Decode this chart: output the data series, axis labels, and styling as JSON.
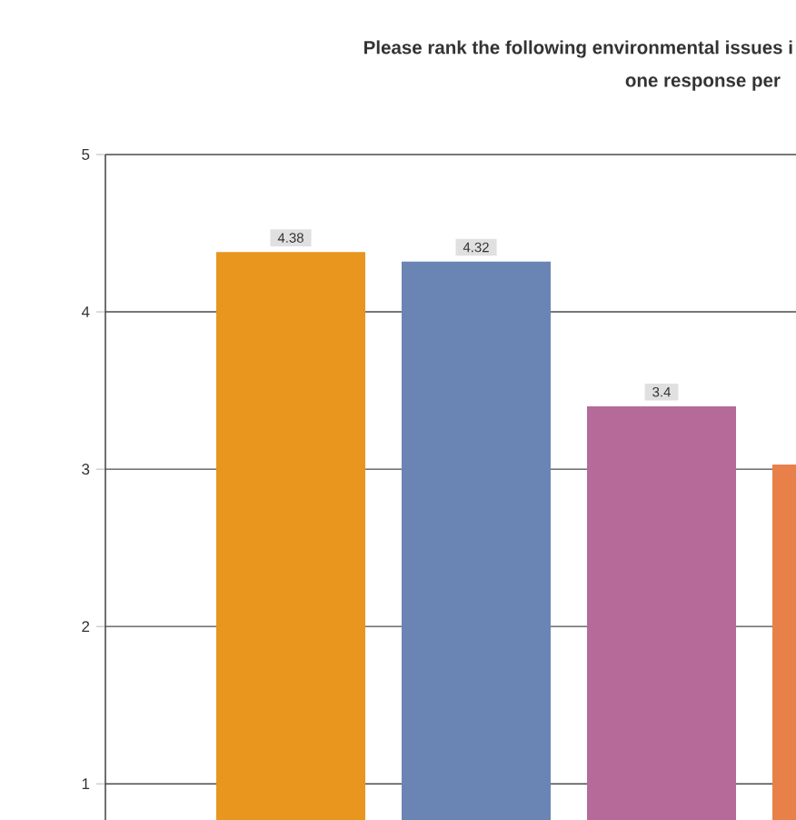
{
  "chart_data": {
    "type": "bar",
    "title": "Please rank the following environmental issues i",
    "subtitle": "one response per",
    "categories": [
      null,
      null,
      null,
      null
    ],
    "values": [
      4.38,
      4.32,
      3.4,
      3.03
    ],
    "colors": [
      "#e8961e",
      "#6a84b4",
      "#b56a9a",
      "#e8804a"
    ],
    "value_labels": [
      "4.38",
      "4.32",
      "3.4",
      null
    ],
    "ylim": [
      0.77,
      5
    ],
    "yticks": [
      1,
      2,
      3,
      4,
      5
    ],
    "grid": "y"
  }
}
